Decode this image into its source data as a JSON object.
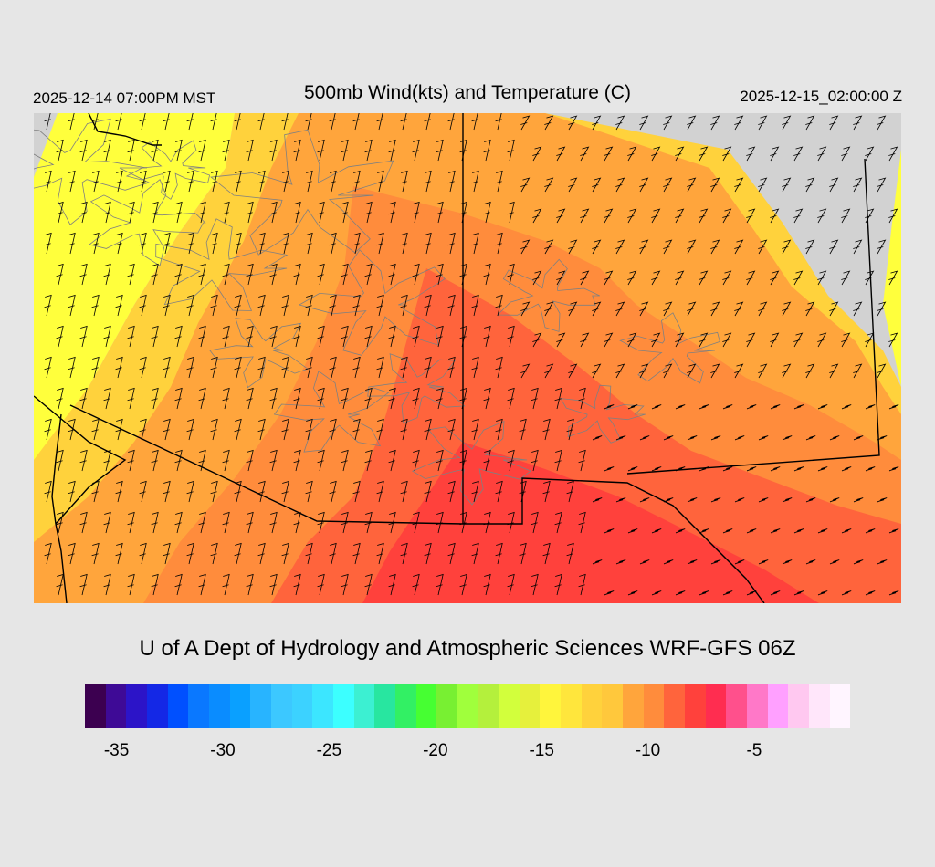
{
  "header": {
    "valid_local": "2025-12-14 07:00PM MST",
    "title": "500mb Wind(kts) and Temperature (C)",
    "valid_utc": "2025-12-15_02:00:00 Z"
  },
  "credit": "U of A Dept of Hydrology and Atmospheric Sciences WRF-GFS 06Z",
  "colorbar": {
    "min": -36,
    "max": -1,
    "colors": [
      "#3c0050",
      "#3e0a96",
      "#2c14c8",
      "#1428e6",
      "#0050ff",
      "#0a78ff",
      "#0a8cff",
      "#0aa0ff",
      "#28b4ff",
      "#3cc8ff",
      "#3cd2ff",
      "#3ce6ff",
      "#3cffff",
      "#3cf0d2",
      "#28e6a0",
      "#32f064",
      "#46ff32",
      "#78f032",
      "#a0ff3c",
      "#b4f03c",
      "#d2ff3c",
      "#e6f03c",
      "#fff53c",
      "#ffe63c",
      "#ffd23c",
      "#ffc83c",
      "#ffa53c",
      "#ff8c3c",
      "#ff643c",
      "#ff413c",
      "#ff2d50",
      "#ff508c",
      "#ff78c8",
      "#ffa0ff",
      "#ffc8f0",
      "#ffe6fa",
      "#fff5ff"
    ],
    "tick_values": [
      -35,
      -30,
      -25,
      -20,
      -15,
      -10,
      -5
    ],
    "tick_labels": [
      "-35",
      "-30",
      "-25",
      "-20",
      "-15",
      "-10",
      "-5"
    ]
  },
  "map": {
    "no_data_color": "#d2d2d2",
    "temperature_band_colors": [
      "#ffff3c",
      "#ffd23c",
      "#ffa53c",
      "#ff8c3c",
      "#ff643c",
      "#ff413c"
    ],
    "boundary_color": "#000000",
    "terrain_contour_color": "#808080",
    "barb_color": "#000000"
  }
}
